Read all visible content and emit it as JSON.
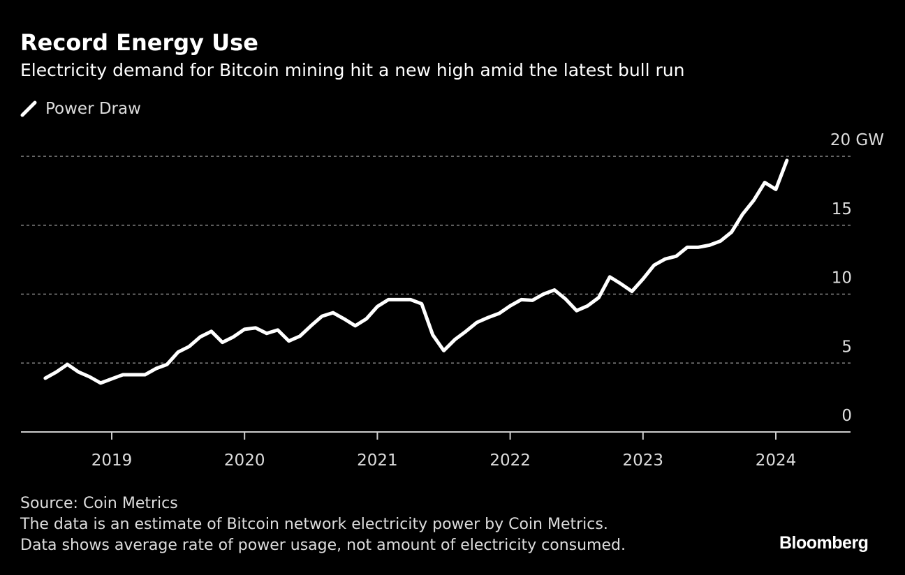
{
  "chart_data": {
    "type": "line",
    "title": "Record Energy Use",
    "subtitle": "Electricity demand for Bitcoin mining hit a new high amid the latest bull run",
    "series": [
      {
        "name": "Power Draw",
        "color": "#ffffff",
        "start": "2018-07",
        "frequency": "monthly",
        "values": [
          3.9,
          4.35,
          4.9,
          4.35,
          4.0,
          3.55,
          3.85,
          4.15,
          4.15,
          4.15,
          4.6,
          4.9,
          5.8,
          6.2,
          6.9,
          7.3,
          6.5,
          6.9,
          7.45,
          7.55,
          7.15,
          7.4,
          6.6,
          6.95,
          7.7,
          8.4,
          8.65,
          8.2,
          7.7,
          8.2,
          9.1,
          9.6,
          9.6,
          9.6,
          9.3,
          7.05,
          5.9,
          6.7,
          7.3,
          7.95,
          8.3,
          8.6,
          9.15,
          9.6,
          9.55,
          10.0,
          10.3,
          9.65,
          8.8,
          9.15,
          9.75,
          11.25,
          10.75,
          10.2,
          11.1,
          12.1,
          12.55,
          12.75,
          13.4,
          13.4,
          13.55,
          13.85,
          14.5,
          15.8,
          16.8,
          18.1,
          17.6,
          19.7
        ]
      }
    ],
    "xlabel": "",
    "ylabel": "",
    "x_ticks": [
      "2019",
      "2020",
      "2021",
      "2022",
      "2023",
      "2024"
    ],
    "y_ticks": [
      "0",
      "5",
      "10",
      "15",
      "20 GW"
    ],
    "ylim": [
      0,
      20
    ],
    "xlim": [
      "2018-06",
      "2024-07"
    ],
    "grid": "horizontal dotted",
    "legend": "top-left"
  },
  "footer": {
    "source": "Source: Coin Metrics",
    "note1": "The data is an estimate of Bitcoin network electricity power by Coin Metrics.",
    "note2": "Data shows average rate of power usage, not amount of electricity consumed.",
    "brand": "Bloomberg"
  }
}
